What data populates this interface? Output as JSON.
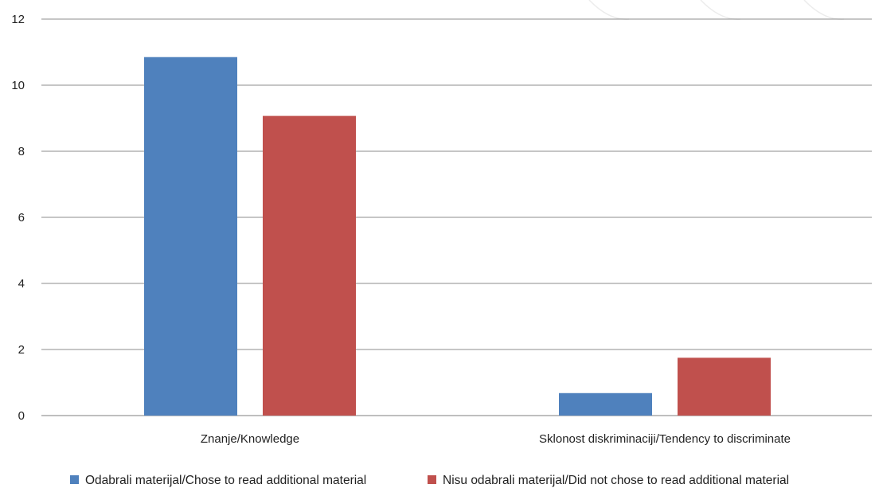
{
  "chart_data": {
    "type": "bar",
    "title": "",
    "xlabel": "",
    "ylabel": "",
    "categories": [
      "Znanje/Knowledge",
      "Sklonost diskriminaciji/Tendency to discriminate"
    ],
    "series": [
      {
        "name": "Odabrali materijal/Chose to read additional material",
        "values": [
          10.85,
          0.68
        ],
        "color": "#4F81BD"
      },
      {
        "name": "Nisu odabrali materijal/Did not chose to read additional material",
        "values": [
          9.07,
          1.75
        ],
        "color": "#C0504D"
      }
    ],
    "ylim": [
      0,
      12
    ],
    "yticks": [
      0,
      2,
      4,
      6,
      8,
      10,
      12
    ],
    "grid": true,
    "legend_position": "bottom"
  }
}
